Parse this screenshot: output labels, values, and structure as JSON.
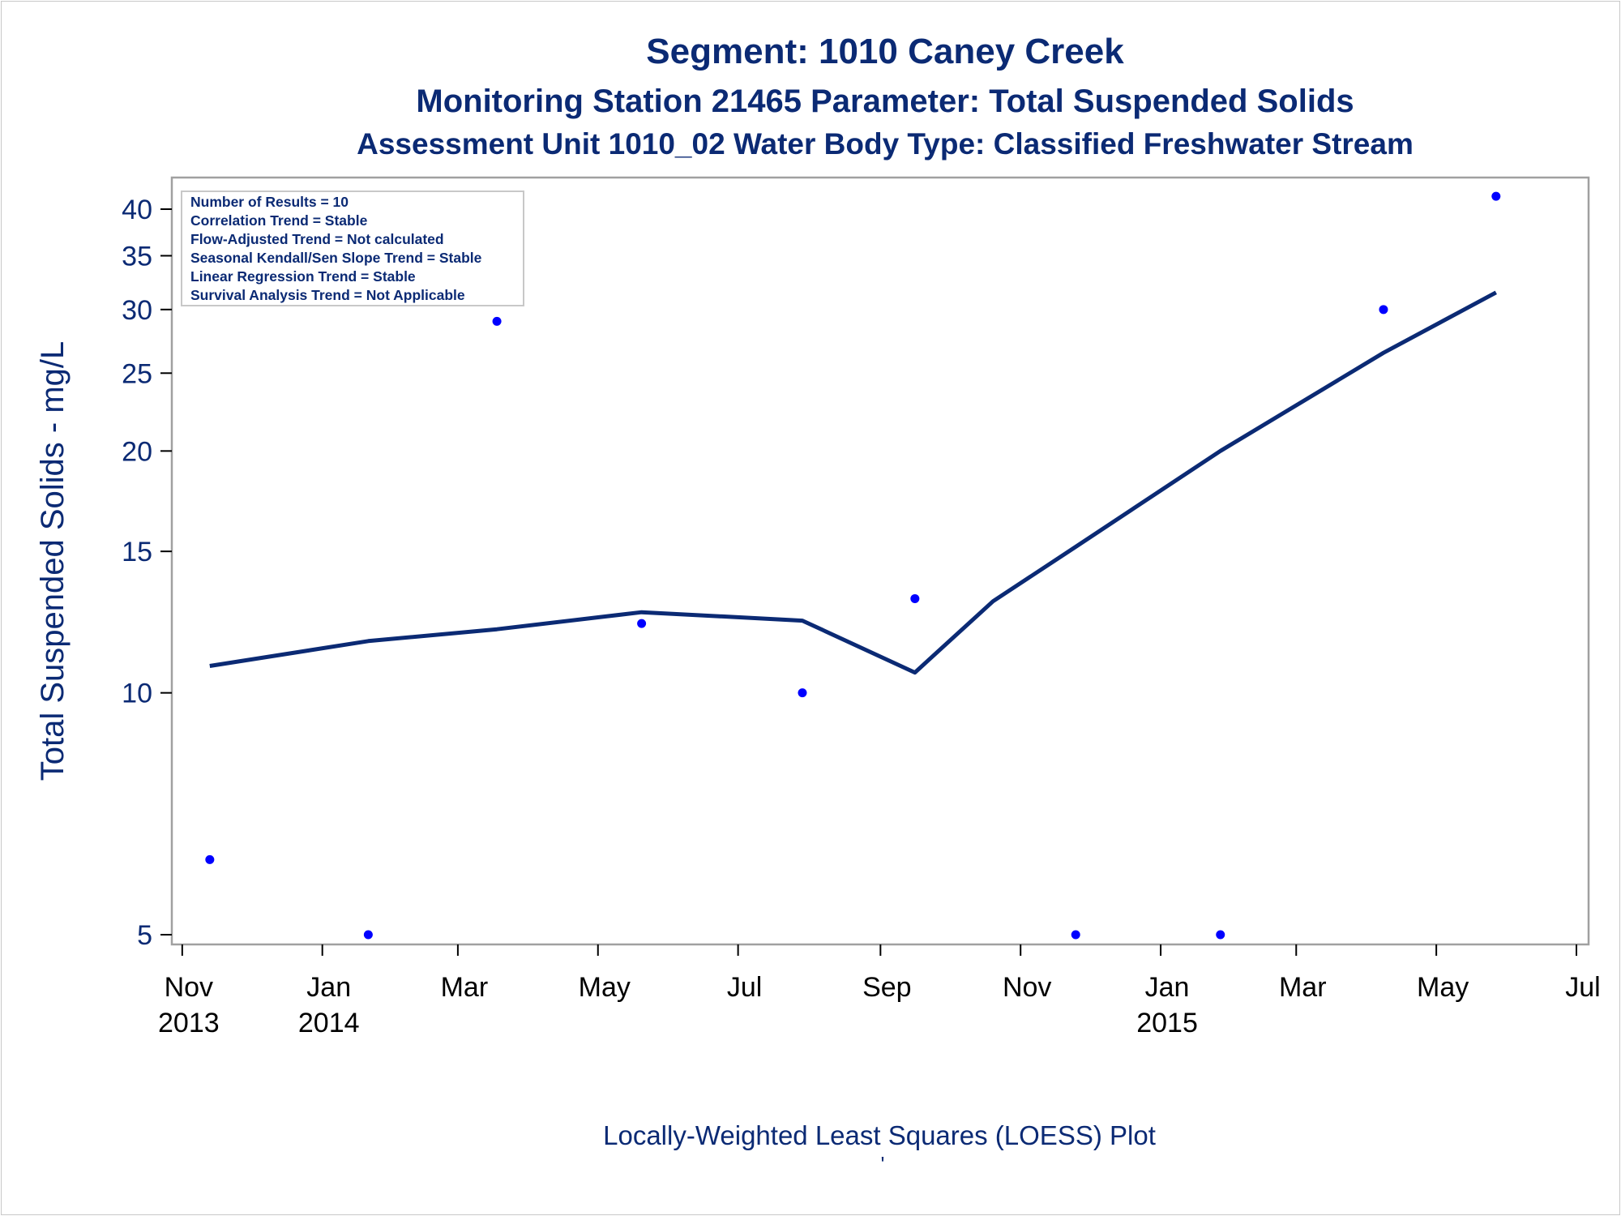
{
  "titles": {
    "line1": "Segment: 1010  Caney Creek",
    "line2": "Monitoring Station 21465 Parameter: Total Suspended Solids",
    "line3": "Assessment Unit 1010_02   Water Body Type: Classified Freshwater Stream"
  },
  "footnote": "Locally-Weighted Least Squares (LOESS) Plot",
  "footnote_mark": "'",
  "stats_box": [
    "Number of Results = 10",
    "Correlation Trend = Stable",
    "Flow-Adjusted Trend = Not calculated",
    "Seasonal Kendall/Sen Slope Trend = Stable",
    "Linear Regression Trend = Stable",
    "Survival Analysis Trend = Not Applicable"
  ],
  "colors": {
    "text": "#0b2a74",
    "points": "#0000ff",
    "loess_line": "#0b2a74",
    "frame": "#a0a0a0"
  },
  "chart_data": {
    "type": "scatter",
    "ylabel": "Total Suspended Solids - mg/L",
    "xlabel": "",
    "yscale": "log",
    "ylim": [
      4.85,
      43
    ],
    "yticks": [
      5,
      10,
      15,
      20,
      25,
      30,
      35,
      40
    ],
    "xlim": [
      "2013-10-31",
      "2015-07-01"
    ],
    "xticks": [
      {
        "date": "2013-11-01",
        "label": [
          "Nov",
          "2013"
        ]
      },
      {
        "date": "2014-01-01",
        "label": [
          "Jan",
          "2014"
        ]
      },
      {
        "date": "2014-03-01",
        "label": [
          "Mar",
          ""
        ]
      },
      {
        "date": "2014-05-01",
        "label": [
          "May",
          ""
        ]
      },
      {
        "date": "2014-07-01",
        "label": [
          "Jul",
          ""
        ]
      },
      {
        "date": "2014-09-01",
        "label": [
          "Sep",
          ""
        ]
      },
      {
        "date": "2014-11-01",
        "label": [
          "Nov",
          ""
        ]
      },
      {
        "date": "2015-01-01",
        "label": [
          "Jan",
          "2015"
        ]
      },
      {
        "date": "2015-03-01",
        "label": [
          "Mar",
          ""
        ]
      },
      {
        "date": "2015-05-01",
        "label": [
          "May",
          ""
        ]
      },
      {
        "date": "2015-07-01",
        "label": [
          "Jul",
          ""
        ]
      }
    ],
    "series": [
      {
        "type": "scatter",
        "points": [
          {
            "x": "2013-11-13",
            "y": 6.2
          },
          {
            "x": "2014-01-21",
            "y": 5
          },
          {
            "x": "2014-03-18",
            "y": 29
          },
          {
            "x": "2014-05-20",
            "y": 12.2
          },
          {
            "x": "2014-07-29",
            "y": 10
          },
          {
            "x": "2014-09-16",
            "y": 13.1
          },
          {
            "x": "2014-11-25",
            "y": 5
          },
          {
            "x": "2015-01-27",
            "y": 5
          },
          {
            "x": "2015-04-08",
            "y": 30
          },
          {
            "x": "2015-05-27",
            "y": 41.5
          }
        ]
      },
      {
        "type": "line",
        "points": [
          {
            "x": "2013-11-13",
            "y": 10.8
          },
          {
            "x": "2014-01-21",
            "y": 11.6
          },
          {
            "x": "2014-03-18",
            "y": 12.0
          },
          {
            "x": "2014-05-20",
            "y": 12.6
          },
          {
            "x": "2014-07-29",
            "y": 12.3
          },
          {
            "x": "2014-09-16",
            "y": 10.6
          },
          {
            "x": "2014-10-20",
            "y": 13.0
          },
          {
            "x": "2014-11-25",
            "y": 15.2
          },
          {
            "x": "2015-01-27",
            "y": 20.0
          },
          {
            "x": "2015-04-08",
            "y": 26.5
          },
          {
            "x": "2015-05-27",
            "y": 31.5
          }
        ]
      }
    ]
  }
}
